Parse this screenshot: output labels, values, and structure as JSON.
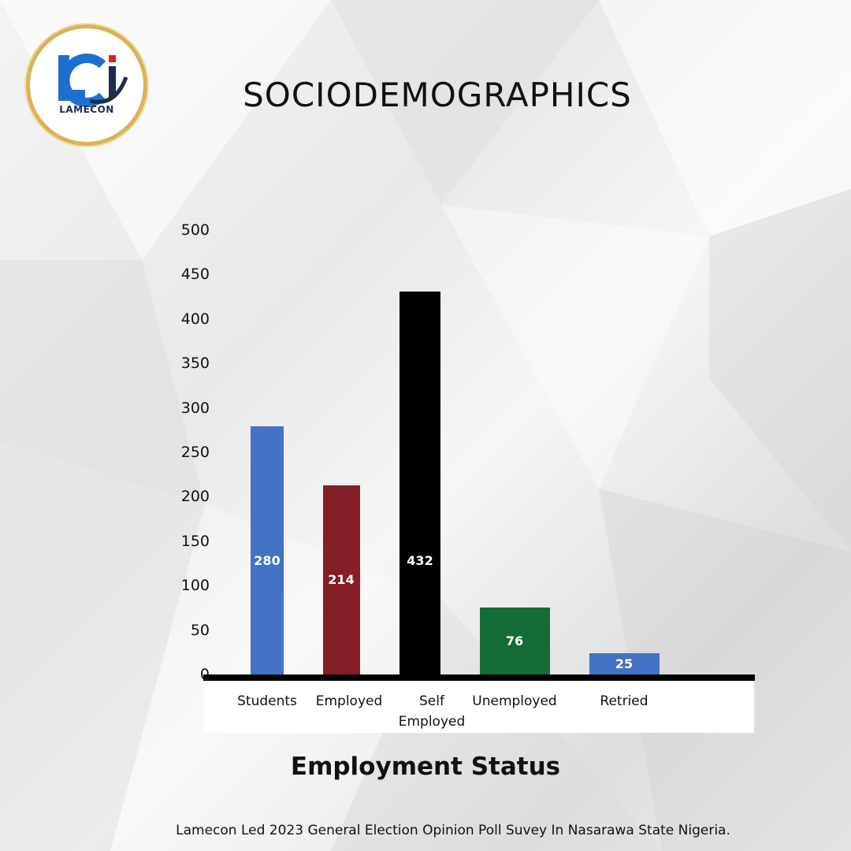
{
  "header": {
    "title": "SOCIODEMOGRAPHICS",
    "logo_text": "LAMECON"
  },
  "footer": {
    "caption": "Lamecon Led 2023 General Election Opinion Poll Suvey In Nasarawa State Nigeria."
  },
  "chart_data": {
    "type": "bar",
    "title": "SOCIODEMOGRAPHICS",
    "xlabel": "Employment Status",
    "ylabel": "",
    "categories": [
      "Students",
      "Employed",
      "Self Employed",
      "Unemployed",
      "Retried"
    ],
    "values": [
      280,
      214,
      432,
      76,
      25
    ],
    "bar_colors": [
      "#4472c4",
      "#841f27",
      "#000000",
      "#156c37",
      "#4472c4"
    ],
    "ylim": [
      0,
      500
    ],
    "yticks": [
      0,
      50,
      100,
      150,
      200,
      250,
      300,
      350,
      400,
      450,
      500
    ],
    "grid": false,
    "legend": "none"
  },
  "colors": {
    "logo_blue": "#1f6fd1",
    "logo_red": "#e41e26",
    "logo_ring": "#d9b25a"
  }
}
